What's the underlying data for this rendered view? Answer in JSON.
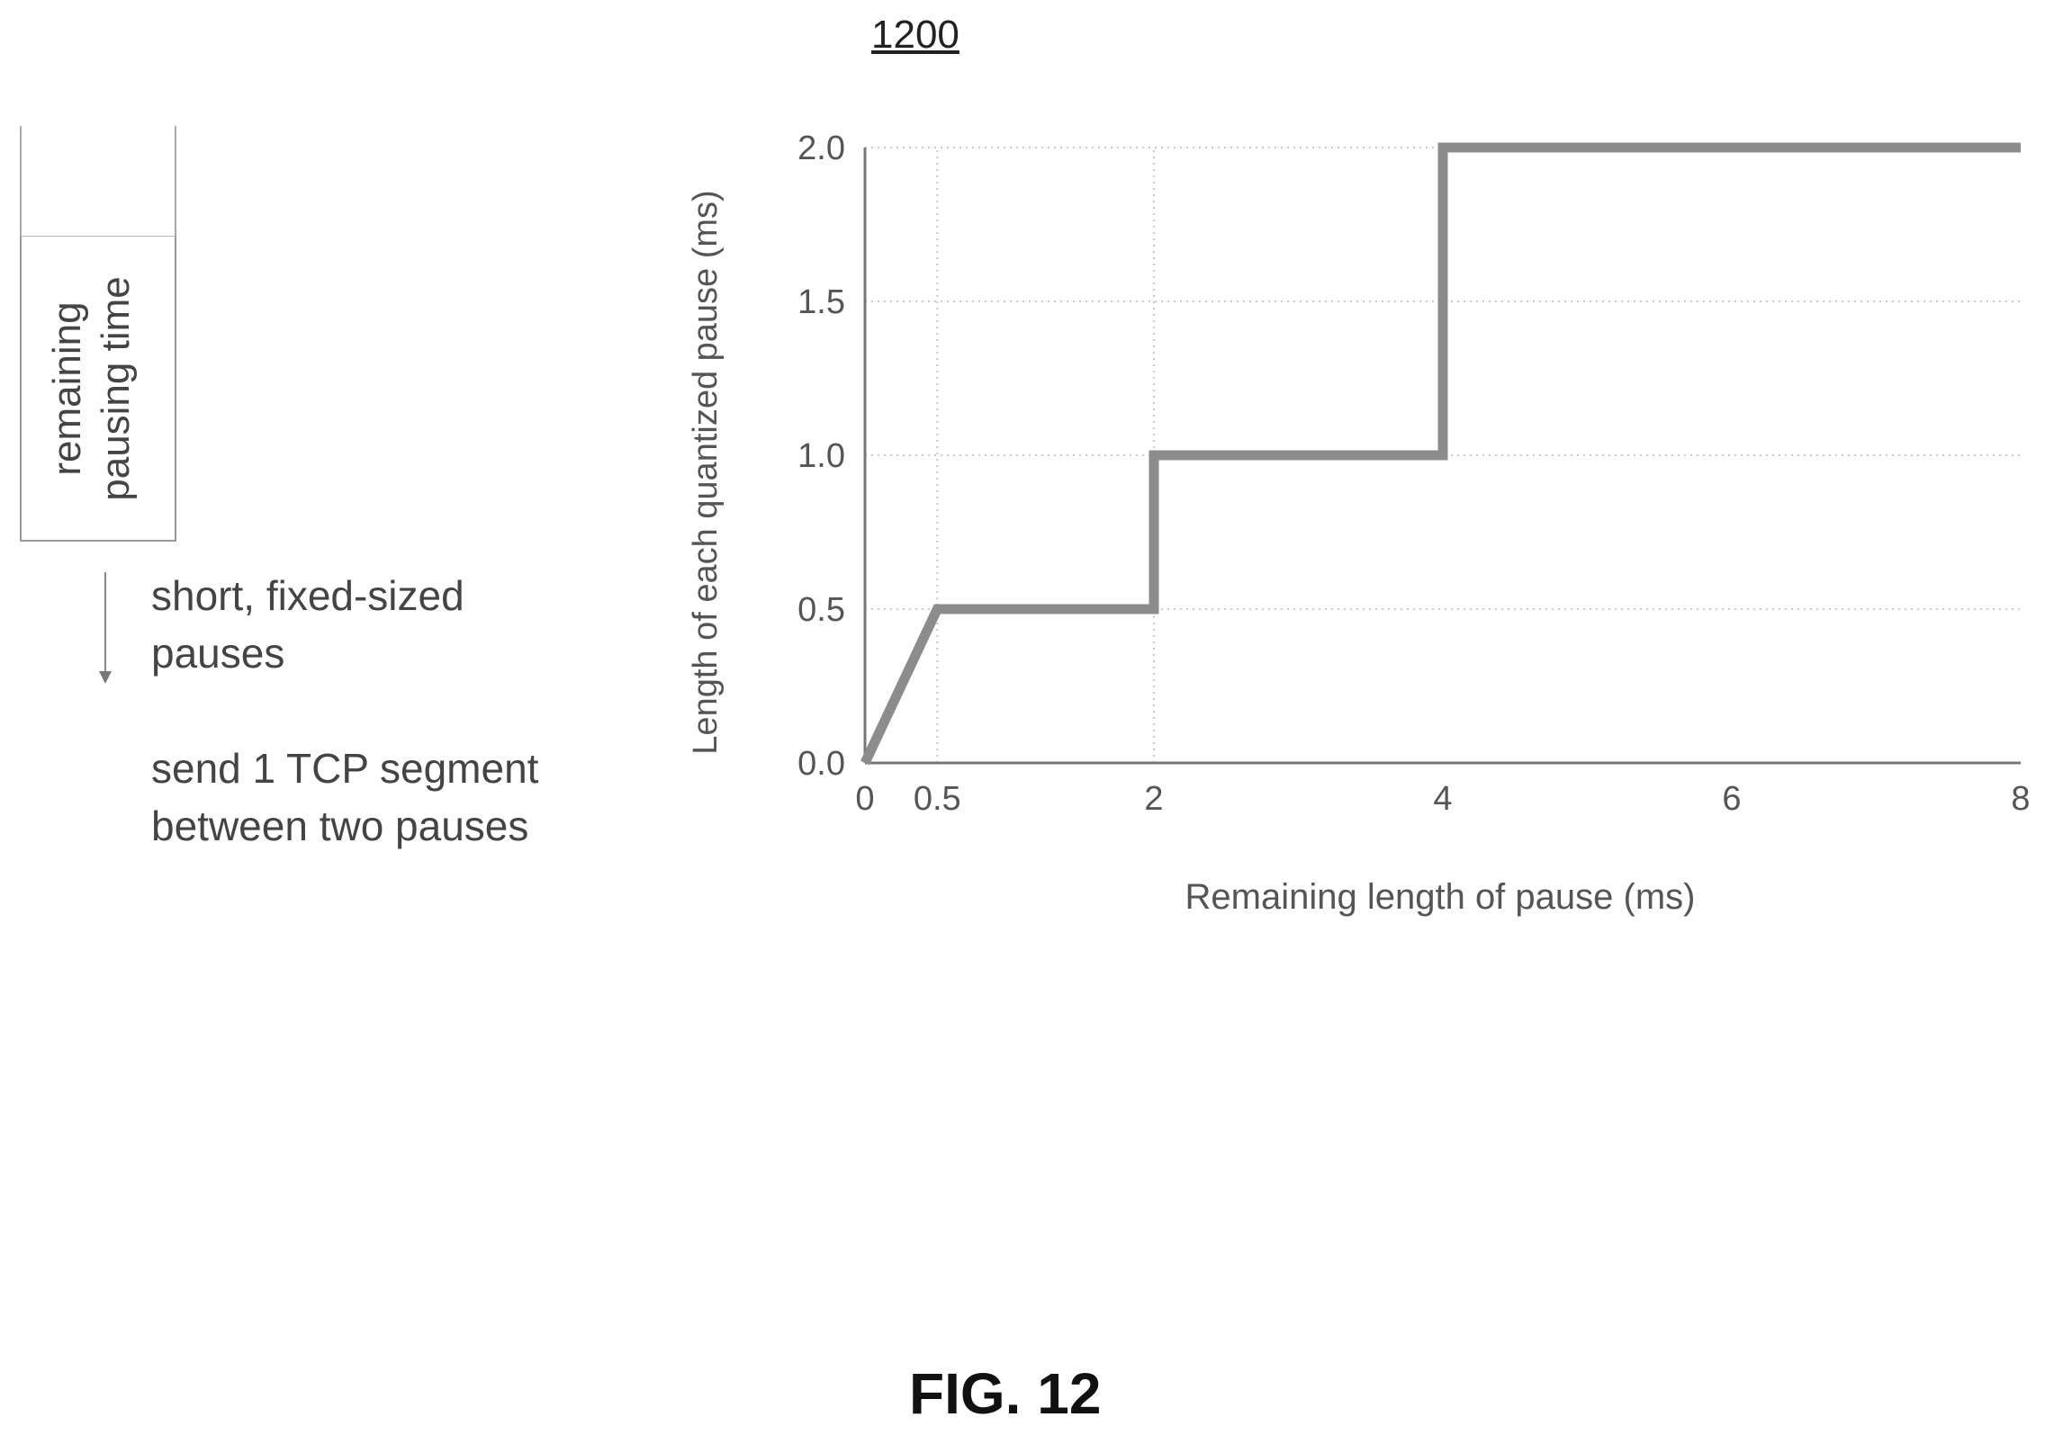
{
  "figure": {
    "number": "1200",
    "caption": "FIG. 12"
  },
  "diagram": {
    "box_label_lines": [
      "remaining",
      "pausing time"
    ],
    "arrow_label_lines": [
      "short, fixed-sized",
      "pauses"
    ],
    "segment_note_lines": [
      "send 1 TCP segment",
      "between two pauses"
    ]
  },
  "chart_data": {
    "type": "line",
    "title": "",
    "xlabel": "Remaining length of pause (ms)",
    "ylabel": "Length of each quantized pause (ms)",
    "x_ticks": [
      "0",
      "0.5",
      "2",
      "4",
      "6",
      "8"
    ],
    "x_tick_values": [
      0,
      0.5,
      2,
      4,
      6,
      8
    ],
    "y_ticks": [
      "0.0",
      "0.5",
      "1.0",
      "1.5",
      "2.0"
    ],
    "y_tick_values": [
      0,
      0.5,
      1.0,
      1.5,
      2.0
    ],
    "xlim": [
      0,
      8
    ],
    "ylim": [
      0,
      2.0
    ],
    "x_grid_values": [
      0.5,
      2
    ],
    "grid": true,
    "series": [
      {
        "x": [
          0,
          0.5,
          2,
          2,
          4,
          4,
          8
        ],
        "y": [
          0,
          0.5,
          0.5,
          1.0,
          1.0,
          2.0,
          2.0
        ],
        "color": "#8c8c8c"
      }
    ]
  }
}
